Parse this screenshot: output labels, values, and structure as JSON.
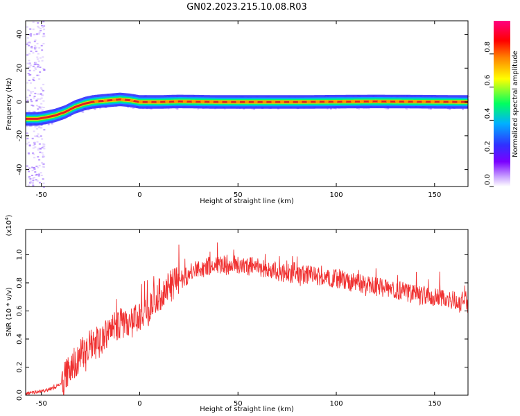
{
  "title": "GN02.2023.215.10.08.R03",
  "colors": {
    "snr_line": "#f03030",
    "ridge_core": "#e02020",
    "spectrum_ramp": [
      "#ffffff",
      "#7a00ff",
      "#3030ff",
      "#00b0ff",
      "#00ff60",
      "#ffff00",
      "#ff8000",
      "#ff0000",
      "#ff0080"
    ]
  },
  "chart_data": [
    {
      "type": "heatmap",
      "xlabel": "Height of straight line (km)",
      "ylabel": "Frequency (Hz)",
      "xlim": [
        -58,
        167
      ],
      "ylim": [
        -50,
        48
      ],
      "xticks": [
        -50,
        0,
        50,
        100,
        150
      ],
      "yticks": [
        -40,
        -20,
        0,
        20,
        40
      ],
      "frequency_ridge": {
        "x": [
          -58,
          -52,
          -47,
          -43,
          -38,
          -33,
          -28,
          -24,
          -20,
          -15,
          -10,
          -5,
          0,
          10,
          20,
          40,
          80,
          120,
          167
        ],
        "y": [
          -10,
          -10,
          -9,
          -8,
          -6,
          -3,
          -1,
          0,
          0.5,
          1,
          1.5,
          1,
          0,
          0,
          0.3,
          0,
          0,
          0.3,
          0
        ]
      },
      "colorbar": {
        "label": "Normalized spectral amplitude",
        "range": [
          0,
          1
        ],
        "ticks": [
          "0.0",
          "0.2",
          "0.4",
          "0.6",
          "0.8"
        ]
      }
    },
    {
      "type": "line",
      "xlabel": "Height of straight line (km)",
      "ylabel": "SNR (10 * v/v)",
      "ylabel_exponent": "(x10",
      "ylabel_exponent_power": "4",
      "ylabel_exponent_close": ")",
      "xlim": [
        -58,
        167
      ],
      "ylim": [
        0,
        1.18
      ],
      "xticks": [
        -50,
        0,
        50,
        100,
        150
      ],
      "yticks": [
        "0.0",
        "0.2",
        "0.4",
        "0.6",
        "0.8",
        "1.0"
      ],
      "series": [
        {
          "envelope_x": [
            -58,
            -50,
            -45,
            -40,
            -35,
            -30,
            -25,
            -20,
            -15,
            -10,
            -5,
            0,
            5,
            10,
            20,
            30,
            40,
            50,
            60,
            70,
            80,
            90,
            100,
            110,
            120,
            130,
            140,
            150,
            160,
            167
          ],
          "envelope_y": [
            0.01,
            0.03,
            0.04,
            0.08,
            0.2,
            0.28,
            0.35,
            0.38,
            0.45,
            0.5,
            0.52,
            0.54,
            0.62,
            0.72,
            0.82,
            0.9,
            0.93,
            0.93,
            0.91,
            0.88,
            0.86,
            0.85,
            0.83,
            0.8,
            0.77,
            0.75,
            0.72,
            0.7,
            0.67,
            0.64
          ]
        }
      ]
    }
  ]
}
